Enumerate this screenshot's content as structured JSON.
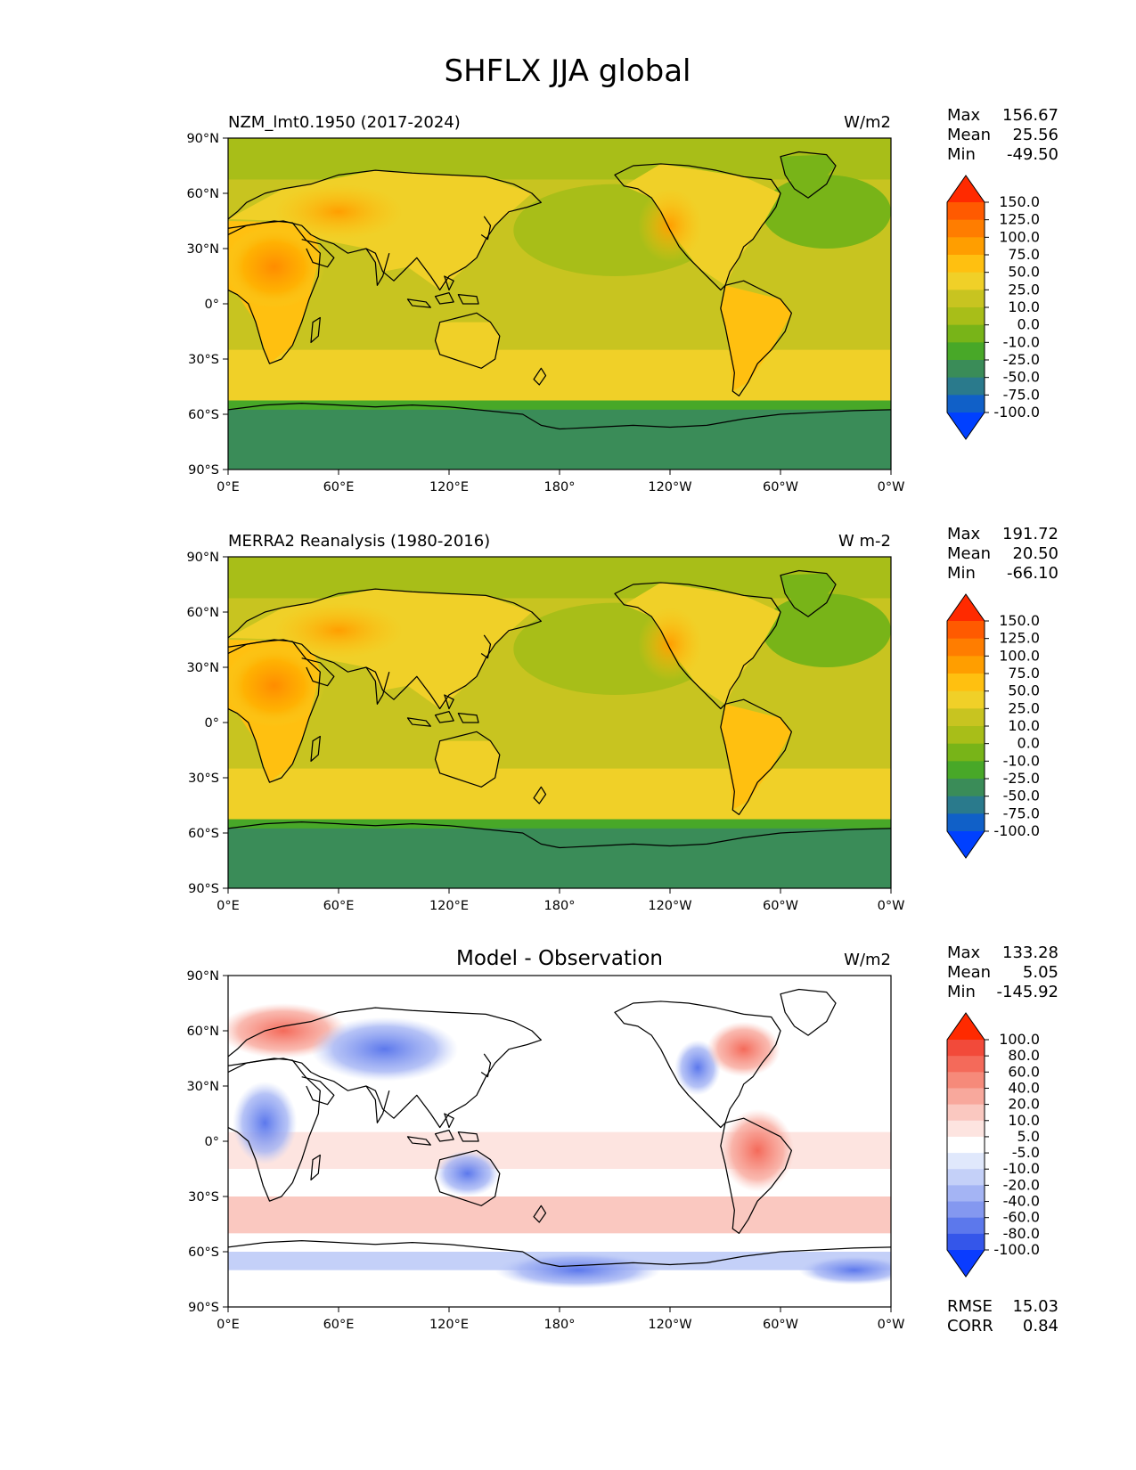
{
  "page_title": "SHFLX JJA global",
  "chart_data": [
    {
      "type": "heatmap",
      "title": "NZM_lmt0.1950 (2017-2024)",
      "units": "W/m2",
      "stats": [
        {
          "label": "Max",
          "value": "156.67"
        },
        {
          "label": "Mean",
          "value": "25.56"
        },
        {
          "label": "Min",
          "value": "-49.50"
        }
      ],
      "lat_ticks": [
        "90°N",
        "60°N",
        "30°N",
        "0°",
        "30°S",
        "60°S",
        "90°S"
      ],
      "lon_ticks": [
        "0°E",
        "60°E",
        "120°E",
        "180°",
        "120°W",
        "60°W",
        "0°W"
      ],
      "xlim": [
        0,
        360
      ],
      "ylim": [
        -90,
        90
      ],
      "colorbar": {
        "labels": [
          "150.0",
          "125.0",
          "100.0",
          "75.0",
          "50.0",
          "25.0",
          "10.0",
          "0.0",
          "-10.0",
          "-25.0",
          "-50.0",
          "-75.0",
          "-100.0"
        ],
        "colors": [
          "#ff2a00",
          "#ff5a00",
          "#ff7d00",
          "#ff9e00",
          "#ffc010",
          "#f0d028",
          "#c8c420",
          "#a8be18",
          "#78b418",
          "#48a828",
          "#3a8c58",
          "#2a7a8c",
          "#1060c8",
          "#0040ff"
        ]
      }
    },
    {
      "type": "heatmap",
      "title": "MERRA2 Reanalysis (1980-2016)",
      "units": "W m-2",
      "stats": [
        {
          "label": "Max",
          "value": "191.72"
        },
        {
          "label": "Mean",
          "value": "20.50"
        },
        {
          "label": "Min",
          "value": "-66.10"
        }
      ],
      "lat_ticks": [
        "90°N",
        "60°N",
        "30°N",
        "0°",
        "30°S",
        "60°S",
        "90°S"
      ],
      "lon_ticks": [
        "0°E",
        "60°E",
        "120°E",
        "180°",
        "120°W",
        "60°W",
        "0°W"
      ],
      "xlim": [
        0,
        360
      ],
      "ylim": [
        -90,
        90
      ],
      "colorbar": {
        "labels": [
          "150.0",
          "125.0",
          "100.0",
          "75.0",
          "50.0",
          "25.0",
          "10.0",
          "0.0",
          "-10.0",
          "-25.0",
          "-50.0",
          "-75.0",
          "-100.0"
        ],
        "colors": [
          "#ff2a00",
          "#ff5a00",
          "#ff7d00",
          "#ff9e00",
          "#ffc010",
          "#f0d028",
          "#c8c420",
          "#a8be18",
          "#78b418",
          "#48a828",
          "#3a8c58",
          "#2a7a8c",
          "#1060c8",
          "#0040ff"
        ]
      }
    },
    {
      "type": "heatmap",
      "title": "Model - Observation",
      "units": "W/m2",
      "stats": [
        {
          "label": "Max",
          "value": "133.28"
        },
        {
          "label": "Mean",
          "value": "5.05"
        },
        {
          "label": "Min",
          "value": "-145.92"
        }
      ],
      "extra_stats": [
        {
          "label": "RMSE",
          "value": "15.03"
        },
        {
          "label": "CORR",
          "value": "0.84"
        }
      ],
      "lat_ticks": [
        "90°N",
        "60°N",
        "30°N",
        "0°",
        "30°S",
        "60°S",
        "90°S"
      ],
      "lon_ticks": [
        "0°E",
        "60°E",
        "120°E",
        "180°",
        "120°W",
        "60°W",
        "0°W"
      ],
      "xlim": [
        0,
        360
      ],
      "ylim": [
        -90,
        90
      ],
      "colorbar": {
        "labels": [
          "100.0",
          "80.0",
          "60.0",
          "40.0",
          "20.0",
          "10.0",
          "5.0",
          "-5.0",
          "-10.0",
          "-20.0",
          "-40.0",
          "-60.0",
          "-80.0",
          "-100.0"
        ],
        "colors": [
          "#ff2a00",
          "#f24a3a",
          "#f46a5a",
          "#f68a7a",
          "#f8a89c",
          "#fac8c0",
          "#fde4e0",
          "#ffffff",
          "#e0e8fc",
          "#c4d0f8",
          "#a4b4f4",
          "#8498f0",
          "#5c78ec",
          "#3456ea",
          "#0a3cff"
        ]
      }
    }
  ]
}
